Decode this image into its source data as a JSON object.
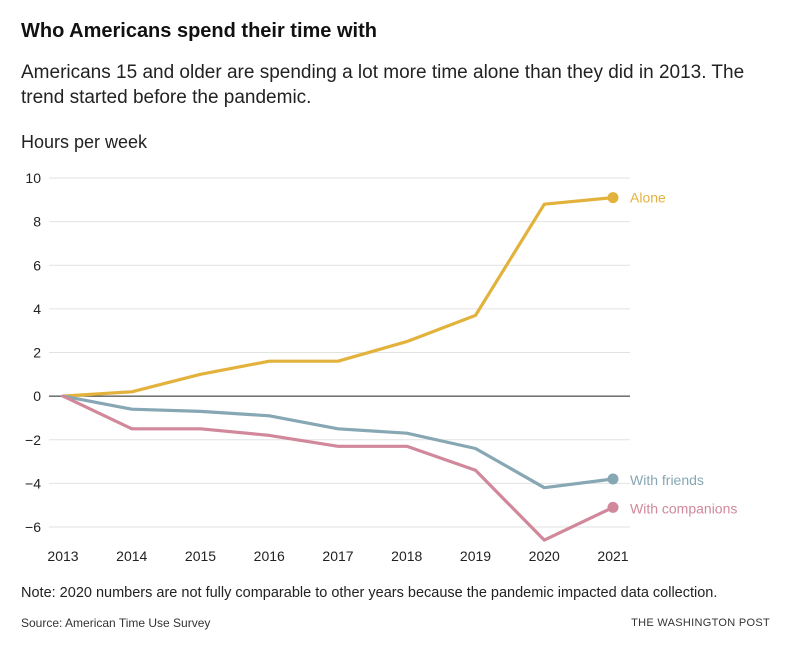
{
  "header": {
    "title": "Who Americans spend their time with",
    "subtitle": "Americans 15 and older are spending a lot more time alone than they did in 2013. The trend started before the pandemic."
  },
  "footer": {
    "note": "Note: 2020 numbers are not fully comparable to other years because the pandemic impacted data collection.",
    "source": "Source: American Time Use Survey",
    "credit": "THE WASHINGTON POST"
  },
  "chart_data": {
    "type": "line",
    "title": "Who Americans spend their time with",
    "ylabel": "Hours per week",
    "xlabel": "",
    "x": [
      2013,
      2014,
      2015,
      2016,
      2017,
      2018,
      2019,
      2020,
      2021
    ],
    "ylim": [
      -7,
      10
    ],
    "yticks": [
      10,
      8,
      6,
      4,
      2,
      0,
      -2,
      -4,
      -6
    ],
    "grid": true,
    "series": [
      {
        "name": "Alone",
        "color": "#e3b23c",
        "values": [
          0,
          0.2,
          1.0,
          1.6,
          1.6,
          2.5,
          3.7,
          8.8,
          9.1
        ]
      },
      {
        "name": "With friends",
        "color": "#86a7b3",
        "values": [
          0,
          -0.6,
          -0.7,
          -0.9,
          -1.5,
          -1.7,
          -2.4,
          -4.2,
          -3.8
        ]
      },
      {
        "name": "With companions",
        "color": "#d0889a",
        "values": [
          0,
          -1.5,
          -1.5,
          -1.8,
          -2.3,
          -2.3,
          -3.4,
          -6.6,
          -5.1
        ]
      }
    ]
  }
}
